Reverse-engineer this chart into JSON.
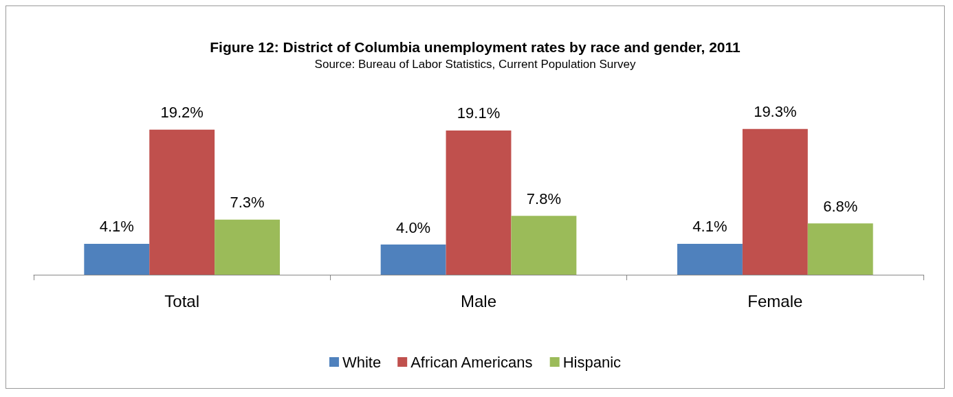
{
  "chart_data": {
    "type": "bar",
    "title": "Figure 12: District of Columbia unemployment rates by race and gender, 2011",
    "annotations": [
      "Source: Bureau of Labor Statistics, Current Population Survey"
    ],
    "categories": [
      "Total",
      "Male",
      "Female"
    ],
    "series": [
      {
        "name": "White",
        "color": "#4f81bd",
        "values": [
          4.1,
          4.0,
          4.1
        ],
        "value_labels": [
          "4.1%",
          "4.0%",
          "4.1%"
        ]
      },
      {
        "name": "African Americans",
        "color": "#c0504d",
        "values": [
          19.2,
          19.1,
          19.3
        ],
        "value_labels": [
          "19.2%",
          "19.1%",
          "19.3%"
        ]
      },
      {
        "name": "Hispanic",
        "color": "#9bbb59",
        "values": [
          7.3,
          7.8,
          6.8
        ],
        "value_labels": [
          "7.3%",
          "7.8%",
          "6.8%"
        ]
      }
    ],
    "legend": "bottom",
    "grid": false,
    "tick_labels": "x"
  }
}
